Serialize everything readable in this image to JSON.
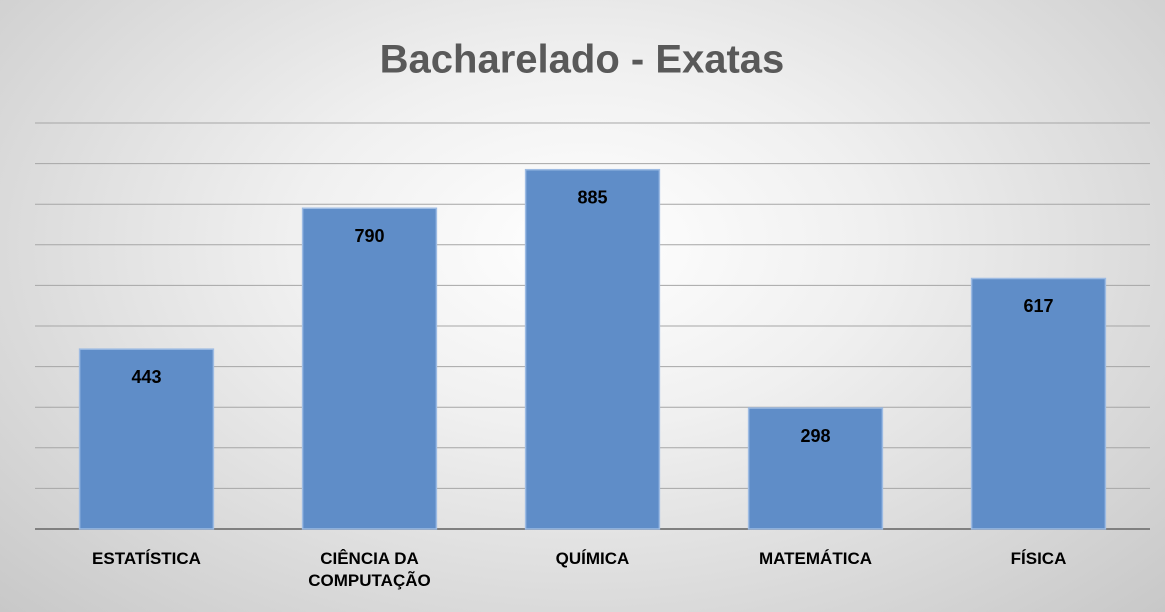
{
  "chart_data": {
    "type": "bar",
    "title": "Bacharelado - Exatas",
    "categories": [
      "ESTATÍSTICA",
      "CIÊNCIA DA COMPUTAÇÃO",
      "QUÍMICA",
      "MATEMÁTICA",
      "FÍSICA"
    ],
    "values": [
      443,
      790,
      885,
      298,
      617
    ],
    "color": "#5f8dc8",
    "ylim": [
      0,
      1000
    ],
    "yticks": [
      0,
      100,
      200,
      300,
      400,
      500,
      600,
      700,
      800,
      900,
      1000
    ],
    "grid": true
  }
}
